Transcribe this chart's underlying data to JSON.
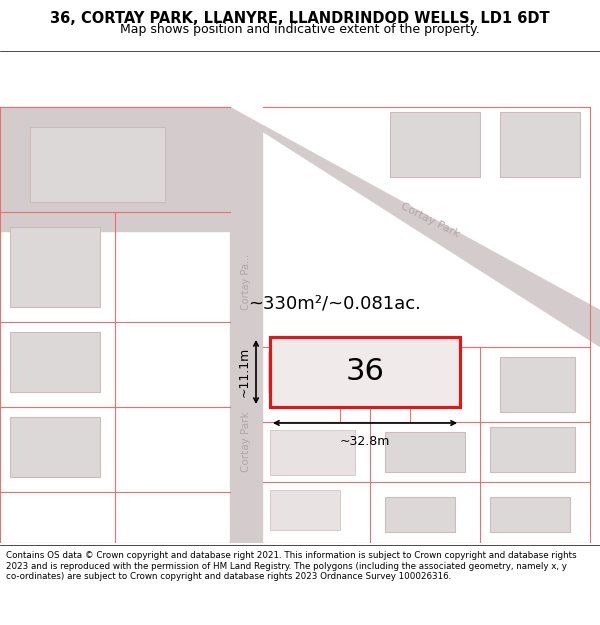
{
  "title_line1": "36, CORTAY PARK, LLANYRE, LLANDRINDOD WELLS, LD1 6DT",
  "title_line2": "Map shows position and indicative extent of the property.",
  "footer_text": "Contains OS data © Crown copyright and database right 2021. This information is subject to Crown copyright and database rights 2023 and is reproduced with the permission of HM Land Registry. The polygons (including the associated geometry, namely x, y co-ordinates) are subject to Crown copyright and database rights 2023 Ordnance Survey 100026316.",
  "area_text": "~330m²/~0.081ac.",
  "number_text": "36",
  "dim_width": "~32.8m",
  "dim_height": "~11.1m",
  "map_bg": "#f8f4f4",
  "road_color": "#d4cccc",
  "bld_fill": "#ddd8d8",
  "bld_edge": "#ccbbbb",
  "red_line": "#e87070",
  "highlight_fill": "#f0eaea",
  "highlight_stroke": "#ee1111",
  "road_label_color": "#b0a8a8",
  "title_fontsize": 10.5,
  "subtitle_fontsize": 9,
  "footer_fontsize": 6.3,
  "area_fontsize": 13,
  "number_fontsize": 22,
  "dim_fontsize": 9
}
